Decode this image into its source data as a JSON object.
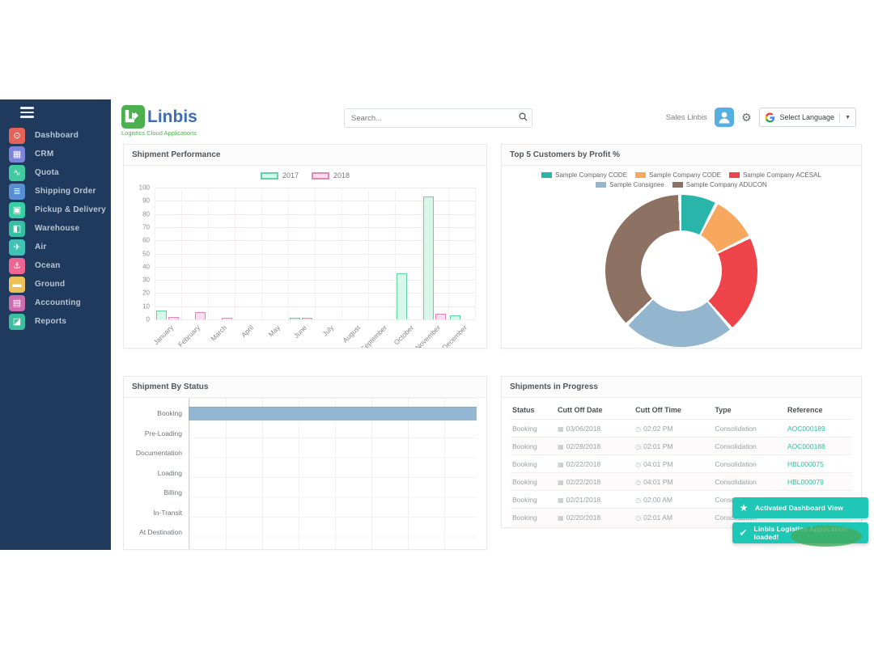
{
  "header": {
    "logo_title": "Linbis",
    "logo_subtitle": "Logistics Cloud Applications",
    "search_placeholder": "Search...",
    "user_name": "Sales Linbis",
    "language_label": "Select Language",
    "language_caret": "▼",
    "gear_glyph": "⚙"
  },
  "sidebar": {
    "items": [
      {
        "label": "Dashboard",
        "icon": "dashboard-icon",
        "glyph": "⊙",
        "color": "#e66158"
      },
      {
        "label": "CRM",
        "icon": "crm-icon",
        "glyph": "▦",
        "color": "#7c83d9"
      },
      {
        "label": "Quota",
        "icon": "quota-icon",
        "glyph": "∿",
        "color": "#41c9a0"
      },
      {
        "label": "Shipping Order",
        "icon": "shipping-order-icon",
        "glyph": "≣",
        "color": "#5a8ed2"
      },
      {
        "label": "Pickup & Delivery",
        "icon": "pickup-delivery-icon",
        "glyph": "▣",
        "color": "#38cfa5"
      },
      {
        "label": "Warehouse",
        "icon": "warehouse-icon",
        "glyph": "◧",
        "color": "#36bfa0"
      },
      {
        "label": "Air",
        "icon": "air-icon",
        "glyph": "✈",
        "color": "#3fc2b4"
      },
      {
        "label": "Ocean",
        "icon": "ocean-icon",
        "glyph": "⚓",
        "color": "#ee6492"
      },
      {
        "label": "Ground",
        "icon": "ground-icon",
        "glyph": "▬",
        "color": "#ecc157"
      },
      {
        "label": "Accounting",
        "icon": "accounting-icon",
        "glyph": "▤",
        "color": "#ce6cb0"
      },
      {
        "label": "Reports",
        "icon": "reports-icon",
        "glyph": "◪",
        "color": "#3cbf9e"
      }
    ]
  },
  "panels": {
    "shipment_performance": {
      "title": "Shipment Performance"
    },
    "top_customers": {
      "title": "Top 5 Customers by Profit %"
    },
    "shipment_by_status": {
      "title": "Shipment By Status"
    },
    "shipments_in_progress": {
      "title": "Shipments in Progress",
      "columns": [
        "Status",
        "Cutt Off Date",
        "Cutt Off Time",
        "Type",
        "Reference"
      ],
      "rows": [
        {
          "status": "Booking",
          "date": "03/06/2018",
          "time": "02:02 PM",
          "type": "Consolidation",
          "reference": "AOC000189"
        },
        {
          "status": "Booking",
          "date": "02/28/2018",
          "time": "02:01 PM",
          "type": "Consolidation",
          "reference": "AOC000188"
        },
        {
          "status": "Booking",
          "date": "02/22/2018",
          "time": "04:01 PM",
          "type": "Consolidation",
          "reference": "HBL000075"
        },
        {
          "status": "Booking",
          "date": "02/22/2018",
          "time": "04:01 PM",
          "type": "Consolidation",
          "reference": "HBL000079"
        },
        {
          "status": "Booking",
          "date": "02/21/2018",
          "time": "02:00 AM",
          "type": "Consolidation",
          "reference": "AOC000186"
        },
        {
          "status": "Booking",
          "date": "02/20/2018",
          "time": "02:01 AM",
          "type": "Consolidation",
          "reference": ""
        }
      ]
    }
  },
  "chart_data": [
    {
      "type": "bar",
      "title": "Shipment Performance",
      "categories": [
        "January",
        "February",
        "March",
        "April",
        "May",
        "June",
        "July",
        "August",
        "September",
        "October",
        "November",
        "December"
      ],
      "series": [
        {
          "name": "2017",
          "fill": "#d9f6ea",
          "stroke": "#5fd3a5",
          "values": [
            7,
            0,
            0,
            0,
            0,
            1,
            0,
            0,
            0,
            35,
            93,
            3
          ]
        },
        {
          "name": "2018",
          "fill": "#fbdeed",
          "stroke": "#e087b5",
          "values": [
            2,
            5.5,
            1,
            0,
            0,
            1,
            0,
            0,
            0,
            0,
            4.5,
            0
          ]
        }
      ],
      "ylim": [
        0,
        100
      ],
      "ytick_step": 10,
      "grid": true,
      "legend_position": "top"
    },
    {
      "type": "pie",
      "title": "Top 5 Customers by Profit %",
      "donut": true,
      "legend_position": "top",
      "segments": [
        {
          "label": "Sample Company CODE",
          "color": "#2ab5aa",
          "value": 8
        },
        {
          "label": "Sample Company CODE",
          "color": "#f8a75e",
          "value": 10
        },
        {
          "label": "Sample Company ACESAL",
          "color": "#ee4449",
          "value": 21
        },
        {
          "label": "Sample Consignee",
          "color": "#93b5ce",
          "value": 24
        },
        {
          "label": "Sample Company ADUCON",
          "color": "#8d7162",
          "value": 37
        }
      ]
    },
    {
      "type": "bar",
      "orientation": "horizontal",
      "title": "Shipment By Status",
      "categories": [
        "Booking",
        "Pre-Loading",
        "Documentation",
        "Loading",
        "Billing",
        "In-Transit",
        "At Destination"
      ],
      "values": [
        1,
        0,
        0,
        0,
        0,
        0,
        0
      ],
      "bar_color": "#93b7d2",
      "xmax": 1
    }
  ],
  "toasts": [
    {
      "icon": "star-icon",
      "glyph": "★",
      "text": "Activated Dashboard View"
    },
    {
      "icon": "check-icon",
      "glyph": "✔",
      "text": "Linbis Logistics Application loaded!"
    }
  ],
  "colors": {
    "sidebar_bg": "#1f3a5c",
    "toast_bg": "#1fc8b6",
    "reference_link": "#2fbf9a",
    "status_bar": "#93b7d2",
    "logo_green": "#4caf50",
    "logo_blue": "#3f6db4"
  }
}
